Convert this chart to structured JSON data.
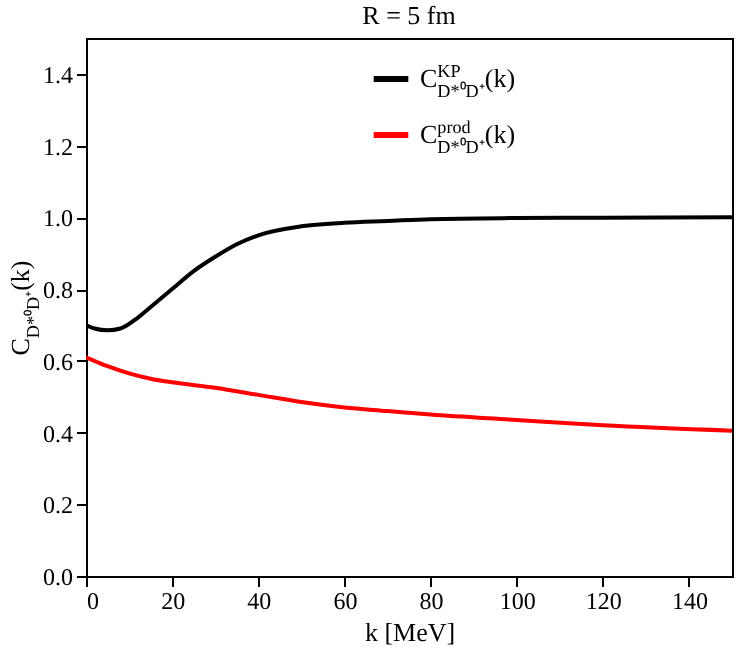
{
  "chart_data": {
    "type": "line",
    "title": "R = 5 fm",
    "xlabel": "k [MeV]",
    "ylabel": "C$_{D*⁰D⁺}$(k)",
    "xlim": [
      0,
      150
    ],
    "xticks": [
      0,
      20,
      40,
      60,
      80,
      100,
      120,
      140
    ],
    "ylim": [
      0,
      1.5
    ],
    "yticks": [
      {
        "value": 0,
        "label": "0.0"
      },
      0.2,
      0.4,
      0.6,
      0.8,
      {
        "value": 1,
        "label": "1.0"
      },
      1.2,
      1.4
    ],
    "grid": false,
    "legend": "top right",
    "line_style": "solid",
    "series": [
      {
        "name": "C$^{KP}$$_{D*⁰D⁺}$(k)",
        "color": "#000000",
        "x": [
          0,
          2,
          5,
          8,
          12,
          16,
          20,
          25,
          30,
          35,
          40,
          50,
          60,
          70,
          80,
          100,
          120,
          150
        ],
        "values": [
          0.7,
          0.69,
          0.685,
          0.69,
          0.72,
          0.76,
          0.8,
          0.85,
          0.89,
          0.925,
          0.95,
          0.975,
          0.985,
          0.99,
          0.995,
          0.998,
          0.999,
          1.0
        ]
      },
      {
        "name": "C$^{prod}$$_{D*⁰D⁺}$(k)",
        "color": "#ff0000",
        "x": [
          0,
          5,
          10,
          15,
          20,
          30,
          40,
          50,
          60,
          70,
          80,
          100,
          120,
          150
        ],
        "values": [
          0.61,
          0.585,
          0.565,
          0.55,
          0.54,
          0.525,
          0.505,
          0.485,
          0.47,
          0.46,
          0.45,
          0.435,
          0.42,
          0.405
        ]
      }
    ]
  }
}
